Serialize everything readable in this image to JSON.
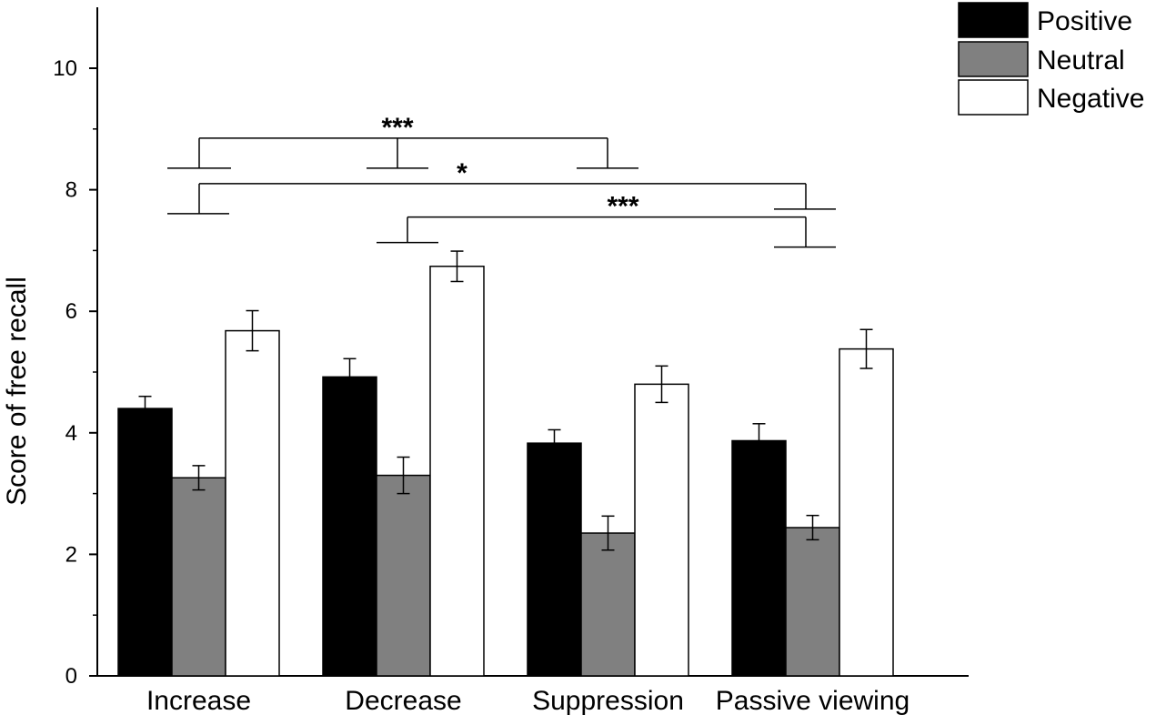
{
  "chart_data": {
    "type": "bar",
    "title": "",
    "xlabel": "",
    "ylabel": "Score of free recall",
    "ylim": [
      0,
      10.5
    ],
    "yticks": [
      0,
      2,
      4,
      6,
      8,
      10
    ],
    "categories": [
      "Increase",
      "Decrease",
      "Suppression",
      "Passive viewing"
    ],
    "series": [
      {
        "name": "Positive",
        "color": "#000000",
        "values": [
          4.4,
          4.92,
          3.83,
          3.87
        ],
        "errors": [
          0.2,
          0.3,
          0.22,
          0.28
        ]
      },
      {
        "name": "Neutral",
        "color": "#808080",
        "values": [
          3.26,
          3.3,
          2.35,
          2.44
        ],
        "errors": [
          0.2,
          0.3,
          0.28,
          0.2
        ]
      },
      {
        "name": "Negative",
        "color": "#ffffff",
        "values": [
          5.68,
          6.74,
          4.8,
          5.38
        ],
        "errors": [
          0.33,
          0.25,
          0.3,
          0.32
        ]
      }
    ],
    "legend": "top-right",
    "significance": [
      {
        "label": "***",
        "from": "Increase",
        "to": "Suppression",
        "via": "Decrease",
        "level": 8.85
      },
      {
        "label": "*",
        "from": "Increase",
        "to": "Passive viewing",
        "level": 8.1
      },
      {
        "label": "***",
        "from": "Decrease",
        "to": "Passive viewing",
        "level": 7.55
      }
    ]
  }
}
